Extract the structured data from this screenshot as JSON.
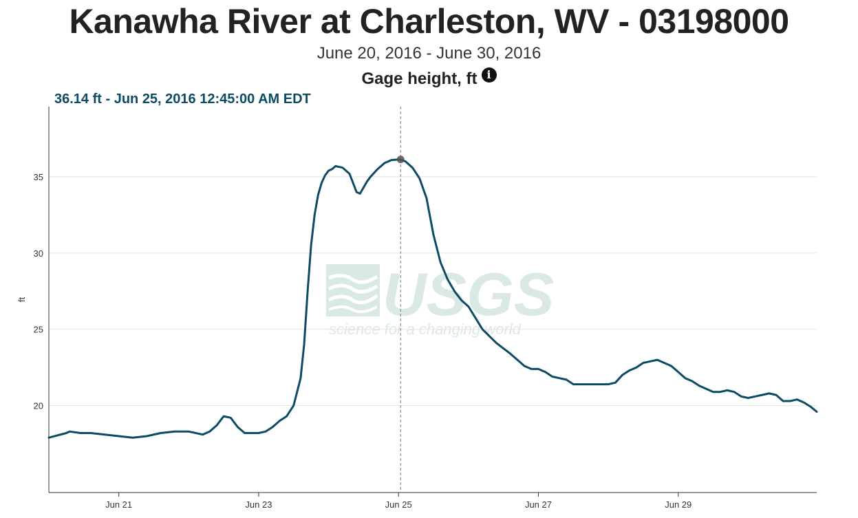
{
  "header": {
    "title": "Kanawha River at Charleston, WV - 03198000",
    "date_range": "June 20, 2016 - June 30, 2016",
    "parameter": "Gage height, ft",
    "info_icon": "info-icon"
  },
  "tooltip": {
    "text": "36.14 ft - Jun 25, 2016 12:45:00 AM EDT"
  },
  "watermark": {
    "logo": "USGS",
    "tagline": "science for a changing world",
    "color": "#dbe9e6"
  },
  "chart_data": {
    "type": "line",
    "title": "",
    "xlabel": "",
    "ylabel": "ft",
    "ylim": [
      14.3,
      39.6
    ],
    "xlim_days": [
      20.0,
      30.98
    ],
    "yticks": [
      20,
      25,
      30,
      35
    ],
    "xtick_labels": [
      "Jun 21",
      "Jun 23",
      "Jun 25",
      "Jun 27",
      "Jun 29"
    ],
    "xtick_values": [
      21,
      23,
      25,
      27,
      29
    ],
    "line_color": "#0d4a63",
    "grid": "horizontal",
    "highlight": {
      "x": 25.03,
      "y": 36.14
    },
    "series": [
      {
        "x": [
          20.0,
          20.25,
          20.3,
          20.45,
          20.6,
          20.8,
          21.0,
          21.2,
          21.4,
          21.6,
          21.8,
          22.0,
          22.2,
          22.3,
          22.4,
          22.5,
          22.6,
          22.7,
          22.8,
          22.9,
          23.0,
          23.1,
          23.2,
          23.3,
          23.4,
          23.5,
          23.6,
          23.65,
          23.7,
          23.75,
          23.8,
          23.85,
          23.9,
          23.95,
          24.0,
          24.05,
          24.1,
          24.2,
          24.3,
          24.35,
          24.4,
          24.45,
          24.5,
          24.55,
          24.6,
          24.7,
          24.8,
          24.9,
          25.0,
          25.03,
          25.1,
          25.2,
          25.3,
          25.4,
          25.5,
          25.6,
          25.7,
          25.8,
          25.9,
          26.0,
          26.2,
          26.4,
          26.6,
          26.7,
          26.8,
          26.9,
          27.0,
          27.1,
          27.2,
          27.3,
          27.4,
          27.5,
          27.6,
          27.7,
          27.8,
          27.9,
          28.0,
          28.1,
          28.2,
          28.3,
          28.4,
          28.5,
          28.6,
          28.7,
          28.8,
          28.9,
          29.0,
          29.1,
          29.2,
          29.3,
          29.4,
          29.5,
          29.6,
          29.7,
          29.8,
          29.9,
          30.0,
          30.1,
          30.2,
          30.3,
          30.4,
          30.5,
          30.6,
          30.7,
          30.8,
          30.9,
          30.98
        ],
        "y": [
          17.9,
          18.2,
          18.3,
          18.2,
          18.2,
          18.1,
          18.0,
          17.9,
          18.0,
          18.2,
          18.3,
          18.3,
          18.1,
          18.3,
          18.7,
          19.3,
          19.2,
          18.6,
          18.2,
          18.2,
          18.2,
          18.3,
          18.6,
          19.0,
          19.3,
          20.0,
          21.8,
          24.0,
          27.5,
          30.5,
          32.5,
          33.8,
          34.6,
          35.1,
          35.4,
          35.5,
          35.7,
          35.6,
          35.2,
          34.6,
          34.0,
          33.9,
          34.3,
          34.7,
          35.0,
          35.5,
          35.9,
          36.1,
          36.13,
          36.14,
          36.0,
          35.6,
          34.9,
          33.6,
          31.2,
          29.4,
          28.3,
          27.5,
          26.9,
          26.5,
          25.0,
          24.1,
          23.4,
          23.0,
          22.6,
          22.4,
          22.4,
          22.2,
          21.9,
          21.8,
          21.7,
          21.4,
          21.4,
          21.4,
          21.4,
          21.4,
          21.4,
          21.5,
          22.0,
          22.3,
          22.5,
          22.8,
          22.9,
          23.0,
          22.8,
          22.6,
          22.2,
          21.8,
          21.6,
          21.3,
          21.1,
          20.9,
          20.9,
          21.0,
          20.9,
          20.6,
          20.5,
          20.6,
          20.7,
          20.8,
          20.7,
          20.3,
          20.3,
          20.4,
          20.2,
          19.9,
          19.6
        ]
      }
    ]
  }
}
